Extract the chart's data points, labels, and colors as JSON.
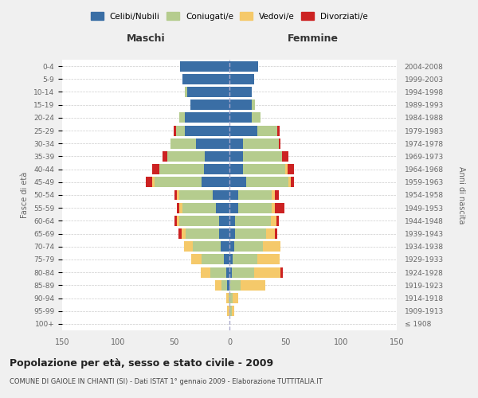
{
  "age_groups": [
    "100+",
    "95-99",
    "90-94",
    "85-89",
    "80-84",
    "75-79",
    "70-74",
    "65-69",
    "60-64",
    "55-59",
    "50-54",
    "45-49",
    "40-44",
    "35-39",
    "30-34",
    "25-29",
    "20-24",
    "15-19",
    "10-14",
    "5-9",
    "0-4"
  ],
  "birth_years": [
    "≤ 1908",
    "1909-1913",
    "1914-1918",
    "1919-1923",
    "1924-1928",
    "1929-1933",
    "1934-1938",
    "1939-1943",
    "1944-1948",
    "1949-1953",
    "1954-1958",
    "1959-1963",
    "1964-1968",
    "1969-1973",
    "1974-1978",
    "1979-1983",
    "1984-1988",
    "1989-1993",
    "1994-1998",
    "1999-2003",
    "2004-2008"
  ],
  "male": {
    "celibi": [
      0,
      0,
      0,
      2,
      3,
      5,
      8,
      9,
      9,
      12,
      15,
      25,
      23,
      22,
      30,
      40,
      40,
      35,
      38,
      42,
      44
    ],
    "coniugati": [
      0,
      0,
      1,
      5,
      14,
      20,
      25,
      30,
      36,
      30,
      30,
      42,
      40,
      34,
      23,
      8,
      5,
      0,
      2,
      0,
      0
    ],
    "vedovi": [
      0,
      2,
      2,
      6,
      9,
      9,
      8,
      4,
      2,
      3,
      2,
      2,
      0,
      0,
      0,
      0,
      0,
      0,
      0,
      0,
      0
    ],
    "divorziati": [
      0,
      0,
      0,
      0,
      0,
      0,
      0,
      3,
      2,
      2,
      2,
      6,
      6,
      4,
      0,
      2,
      0,
      0,
      0,
      0,
      0
    ]
  },
  "female": {
    "nubili": [
      0,
      0,
      0,
      0,
      2,
      3,
      4,
      5,
      5,
      8,
      8,
      15,
      12,
      12,
      12,
      25,
      20,
      20,
      20,
      22,
      26
    ],
    "coniugate": [
      0,
      2,
      3,
      10,
      20,
      22,
      26,
      28,
      32,
      30,
      30,
      38,
      38,
      35,
      32,
      18,
      8,
      3,
      0,
      0,
      0
    ],
    "vedove": [
      0,
      2,
      5,
      22,
      24,
      20,
      16,
      8,
      5,
      3,
      3,
      2,
      2,
      0,
      0,
      0,
      0,
      0,
      0,
      0,
      0
    ],
    "divorziate": [
      0,
      0,
      0,
      0,
      2,
      0,
      0,
      2,
      2,
      8,
      3,
      3,
      6,
      6,
      2,
      2,
      0,
      0,
      0,
      0,
      0
    ]
  },
  "colors": {
    "celibi": "#3a6ea5",
    "coniugati": "#b5cc8e",
    "vedovi": "#f5c96a",
    "divorziati": "#cc2222"
  },
  "title": "Popolazione per età, sesso e stato civile - 2009",
  "subtitle": "COMUNE DI GAIOLE IN CHIANTI (SI) - Dati ISTAT 1° gennaio 2009 - Elaborazione TUTTITALIA.IT",
  "xlabel_left": "Maschi",
  "xlabel_right": "Femmine",
  "ylabel_left": "Fasce di età",
  "ylabel_right": "Anni di nascita",
  "legend": [
    "Celibi/Nubili",
    "Coniugati/e",
    "Vedovi/e",
    "Divorziati/e"
  ],
  "xlim": 150,
  "background_color": "#f0f0f0",
  "plot_bg": "#ffffff"
}
